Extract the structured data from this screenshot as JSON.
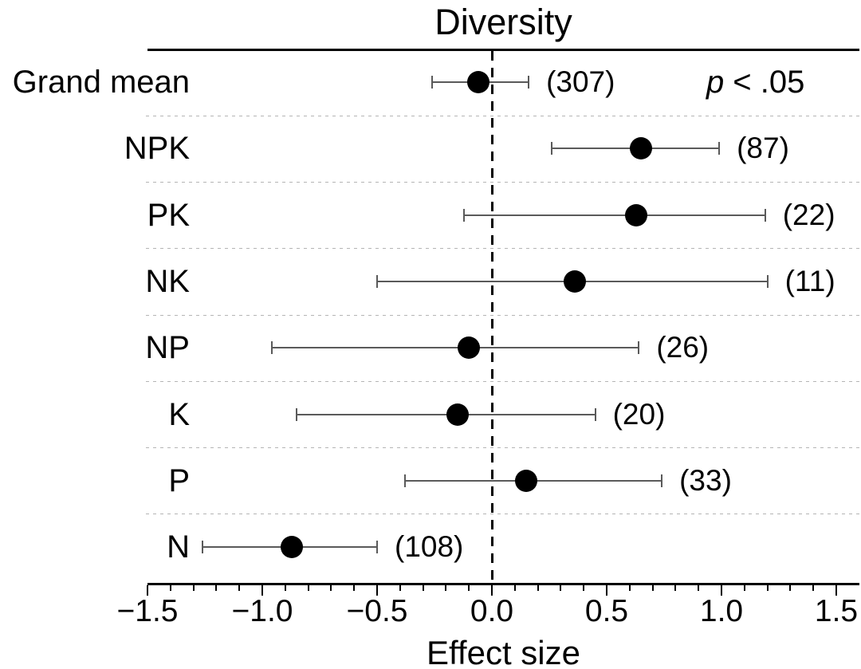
{
  "title": "Diversity",
  "annotation": {
    "p": "p",
    "rest": "< .05"
  },
  "xlabel": "Effect size",
  "chart_data": {
    "type": "forest",
    "title": "Diversity",
    "xlabel": "Effect size",
    "xlim": [
      -1.5,
      1.5
    ],
    "x_major_ticks": [
      -1.5,
      -1.0,
      -0.5,
      0.0,
      0.5,
      1.0,
      1.5
    ],
    "x_tick_labels": [
      "−1.5",
      "−1.0",
      "−0.5",
      "0.0",
      "0.5",
      "1.0",
      "1.5"
    ],
    "x_minor_tick_step": 0.1,
    "zero_reference_line": 0.0,
    "annotation_text": "p < .05",
    "legend": "none",
    "grid": "dotted row separators",
    "rows": [
      {
        "label": "Grand mean",
        "mean": -0.06,
        "ci_low": -0.26,
        "ci_high": 0.16,
        "n": 307,
        "n_label": "(307)"
      },
      {
        "label": "NPK",
        "mean": 0.65,
        "ci_low": 0.26,
        "ci_high": 0.99,
        "n": 87,
        "n_label": "(87)"
      },
      {
        "label": "PK",
        "mean": 0.63,
        "ci_low": -0.12,
        "ci_high": 1.19,
        "n": 22,
        "n_label": "(22)"
      },
      {
        "label": "NK",
        "mean": 0.36,
        "ci_low": -0.5,
        "ci_high": 1.2,
        "n": 11,
        "n_label": "(11)"
      },
      {
        "label": "NP",
        "mean": -0.1,
        "ci_low": -0.96,
        "ci_high": 0.64,
        "n": 26,
        "n_label": "(26)"
      },
      {
        "label": "K",
        "mean": -0.15,
        "ci_low": -0.85,
        "ci_high": 0.45,
        "n": 20,
        "n_label": "(20)"
      },
      {
        "label": "P",
        "mean": 0.15,
        "ci_low": -0.38,
        "ci_high": 0.74,
        "n": 33,
        "n_label": "(33)"
      },
      {
        "label": "N",
        "mean": -0.87,
        "ci_low": -1.26,
        "ci_high": -0.5,
        "n": 108,
        "n_label": "(108)"
      }
    ],
    "colors": {
      "marker": "#000000",
      "ci_line": "#5a5a5a",
      "separator": "#b5b5b5",
      "axis": "#000000",
      "text": "#000000",
      "background": "#ffffff"
    }
  }
}
